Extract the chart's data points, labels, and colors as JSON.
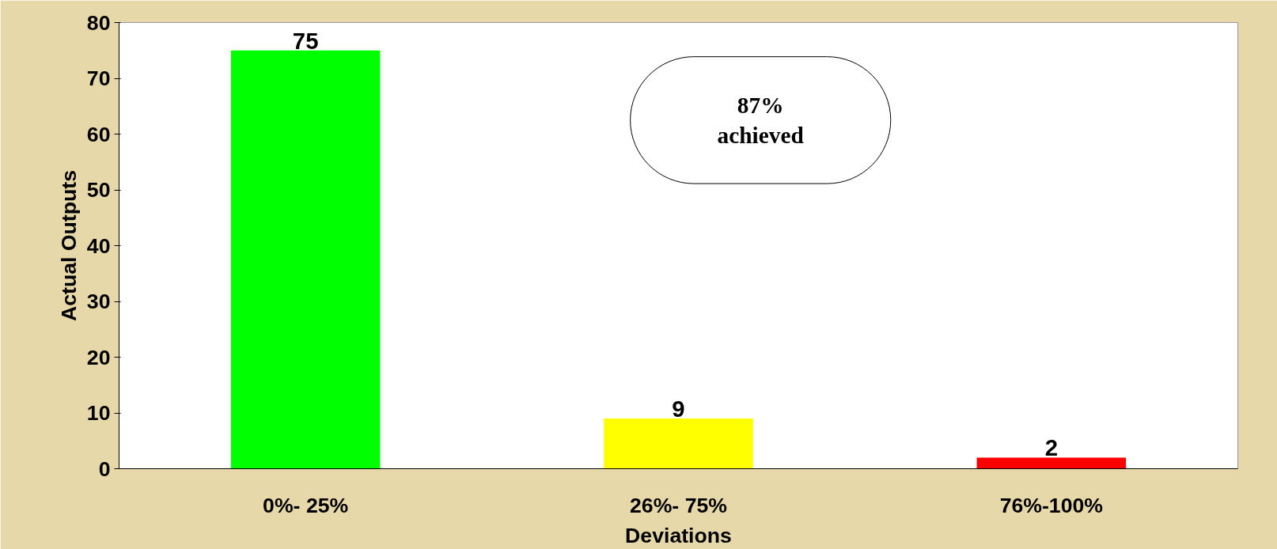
{
  "chart_data": {
    "type": "bar",
    "xlabel": "Deviations",
    "ylabel": "Actual Outputs",
    "categories": [
      "0%- 25%",
      "26%- 75%",
      "76%-100%"
    ],
    "values": [
      75,
      9,
      2
    ],
    "colors": [
      "#00ff00",
      "#ffff00",
      "#ff0000"
    ],
    "ylim": [
      0,
      80
    ],
    "yticks": [
      0,
      10,
      20,
      30,
      40,
      50,
      60,
      70,
      80
    ],
    "data_labels": true,
    "grid": false,
    "annotations": [
      "87%\nachieved"
    ]
  }
}
